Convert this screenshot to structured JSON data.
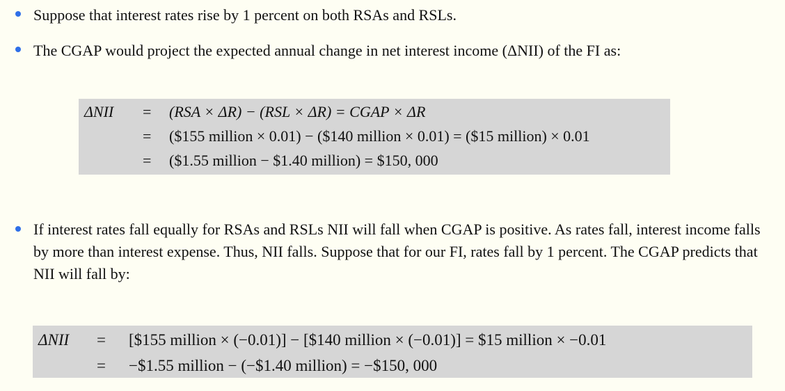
{
  "bullets": [
    "Suppose that interest rates rise by 1 percent on both RSAs and RSLs.",
    "The CGAP would project the expected annual change in net interest income (ΔNII) of the FI as:",
    "If interest rates fall equally for RSAs and RSLs NII will fall when CGAP is positive. As rates fall, interest income falls by more than interest expense. Thus, NII falls. Suppose that for our FI, rates fall by 1 percent. The CGAP predicts that NII will fall by:"
  ],
  "equation1": {
    "lhs": "ΔNII",
    "eq": "=",
    "rows": [
      "(RSA × ΔR) − (RSL × ΔR) = CGAP × ΔR",
      "($155 million × 0.01) − ($140 million × 0.01) = ($15 million) × 0.01",
      "($1.55 million − $1.40 million) = $150, 000"
    ]
  },
  "equation2": {
    "lhs": "ΔNII",
    "eq": "=",
    "rows": [
      "[$155 million × (−0.01)] − [$140 million × (−0.01)] = $15 million × −0.01",
      "−$1.55 million − (−$1.40 million) = −$150, 000"
    ]
  },
  "colors": {
    "bullet": "#2f6fe8",
    "box": "#d6d6d6",
    "background": "#fefef3"
  }
}
